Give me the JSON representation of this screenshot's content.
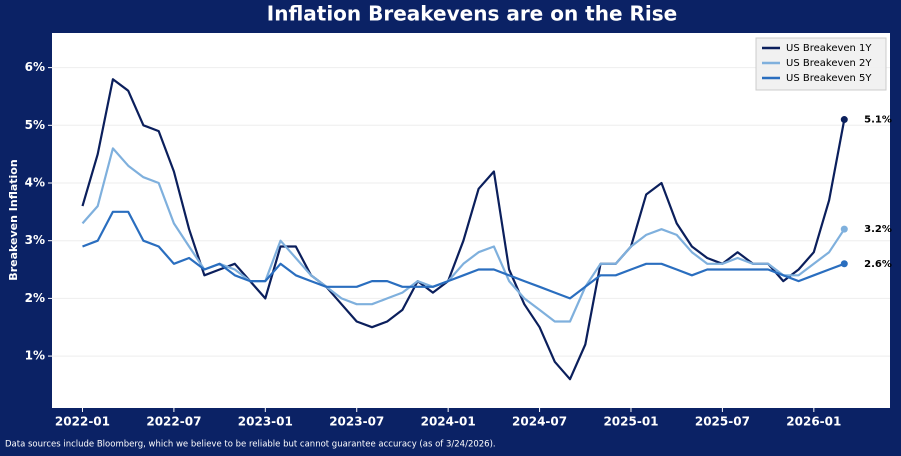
{
  "chart_data": {
    "type": "line",
    "title": "Inflation Breakevens are on the Rise",
    "y_label": "Breakeven Inflation",
    "footnote": "Data sources include Bloomberg, which we believe to be reliable but cannot guarantee accuracy (as of 3/24/2026).",
    "x": [
      "2022-01",
      "2022-02",
      "2022-03",
      "2022-04",
      "2022-05",
      "2022-06",
      "2022-07",
      "2022-08",
      "2022-09",
      "2022-10",
      "2022-11",
      "2022-12",
      "2023-01",
      "2023-02",
      "2023-03",
      "2023-04",
      "2023-05",
      "2023-06",
      "2023-07",
      "2023-08",
      "2023-09",
      "2023-10",
      "2023-11",
      "2023-12",
      "2024-01",
      "2024-02",
      "2024-03",
      "2024-04",
      "2024-05",
      "2024-06",
      "2024-07",
      "2024-08",
      "2024-09",
      "2024-10",
      "2024-11",
      "2024-12",
      "2025-01",
      "2025-02",
      "2025-03",
      "2025-04",
      "2025-05",
      "2025-06",
      "2025-07",
      "2025-08",
      "2025-09",
      "2025-10",
      "2025-11",
      "2025-12",
      "2026-01",
      "2026-02",
      "2026-03"
    ],
    "series": [
      {
        "name": "US Breakeven 1Y",
        "color": "#0b1f5c",
        "end_label": "5.1%",
        "values": [
          3.6,
          4.5,
          5.8,
          5.6,
          5.0,
          4.9,
          4.2,
          3.2,
          2.4,
          2.5,
          2.6,
          2.3,
          2.0,
          2.9,
          2.9,
          2.4,
          2.2,
          1.9,
          1.6,
          1.5,
          1.6,
          1.8,
          2.3,
          2.1,
          2.3,
          3.0,
          3.9,
          4.2,
          2.5,
          1.9,
          1.5,
          0.9,
          0.6,
          1.2,
          2.6,
          2.6,
          2.9,
          3.8,
          4.0,
          3.3,
          2.9,
          2.7,
          2.6,
          2.8,
          2.6,
          2.6,
          2.3,
          2.5,
          2.8,
          3.7,
          5.1
        ]
      },
      {
        "name": "US Breakeven 2Y",
        "color": "#7fb0dd",
        "end_label": "3.2%",
        "values": [
          3.3,
          3.6,
          4.6,
          4.3,
          4.1,
          4.0,
          3.3,
          2.9,
          2.5,
          2.6,
          2.5,
          2.3,
          2.3,
          3.0,
          2.7,
          2.4,
          2.2,
          2.0,
          1.9,
          1.9,
          2.0,
          2.1,
          2.3,
          2.2,
          2.3,
          2.6,
          2.8,
          2.9,
          2.3,
          2.0,
          1.8,
          1.6,
          1.6,
          2.2,
          2.6,
          2.6,
          2.9,
          3.1,
          3.2,
          3.1,
          2.8,
          2.6,
          2.6,
          2.7,
          2.6,
          2.6,
          2.4,
          2.4,
          2.6,
          2.8,
          3.2
        ]
      },
      {
        "name": "US Breakeven 5Y",
        "color": "#2a6ebf",
        "end_label": "2.6%",
        "values": [
          2.9,
          3.0,
          3.5,
          3.5,
          3.0,
          2.9,
          2.6,
          2.7,
          2.5,
          2.6,
          2.4,
          2.3,
          2.3,
          2.6,
          2.4,
          2.3,
          2.2,
          2.2,
          2.2,
          2.3,
          2.3,
          2.2,
          2.2,
          2.2,
          2.3,
          2.4,
          2.5,
          2.5,
          2.4,
          2.3,
          2.2,
          2.1,
          2.0,
          2.2,
          2.4,
          2.4,
          2.5,
          2.6,
          2.6,
          2.5,
          2.4,
          2.5,
          2.5,
          2.5,
          2.5,
          2.5,
          2.4,
          2.3,
          2.4,
          2.5,
          2.6
        ]
      }
    ],
    "xlim": [
      "2021-11",
      "2026-06"
    ],
    "xticks": [
      "2022-01",
      "2022-07",
      "2023-01",
      "2023-07",
      "2024-01",
      "2024-07",
      "2025-01",
      "2025-07",
      "2026-01"
    ],
    "ylim": [
      0.1,
      6.6
    ],
    "yticks": [
      {
        "value": 1,
        "label": "1%"
      },
      {
        "value": 2,
        "label": "2%"
      },
      {
        "value": 3,
        "label": "3%"
      },
      {
        "value": 4,
        "label": "4%"
      },
      {
        "value": 5,
        "label": "5%"
      },
      {
        "value": 6,
        "label": "6%"
      }
    ],
    "grid": true,
    "legend": "upper right"
  }
}
